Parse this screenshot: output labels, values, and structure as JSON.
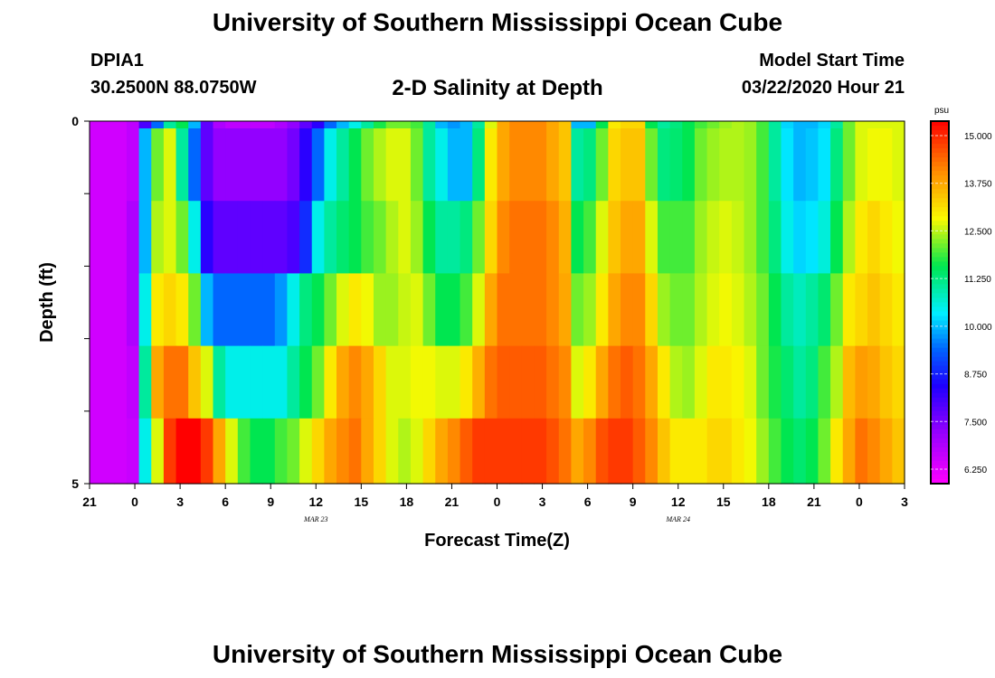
{
  "header": {
    "main_title": "University of Southern Mississippi Ocean Cube",
    "station_id": "DPIA1",
    "station_coords": "30.2500N 88.0750W",
    "plot_title": "2-D Salinity at Depth",
    "model_label": "Model Start Time",
    "model_time": "03/22/2020 Hour 21"
  },
  "footer": {
    "title": "University of Southern Mississippi Ocean Cube"
  },
  "chart_data": {
    "type": "heatmap",
    "title": "2-D Salinity at Depth",
    "xlabel": "Forecast Time(Z)",
    "ylabel": "Depth (ft)",
    "x_tick_labels": [
      "21",
      "0",
      "3",
      "6",
      "9",
      "12",
      "15",
      "18",
      "21",
      "0",
      "3",
      "6",
      "9",
      "12",
      "15",
      "18",
      "21",
      "0",
      "3"
    ],
    "x_range_hours": [
      0,
      54
    ],
    "date_labels": [
      {
        "text": "MAR 23",
        "hour": 15
      },
      {
        "text": "MAR 24",
        "hour": 39
      }
    ],
    "y_tick_labels": [
      "0",
      "5"
    ],
    "y_range": [
      0,
      5
    ],
    "y_minor_ticks": [
      1,
      2,
      3,
      4
    ],
    "time_step_hours": 1,
    "depth_bands": 5,
    "colorbar": {
      "unit": "psu",
      "min": 6.25,
      "max": 15.0,
      "tick_labels": [
        "15.000",
        "13.750",
        "12.500",
        "11.250",
        "10.000",
        "8.750",
        "7.500",
        "6.250"
      ],
      "tick_values": [
        15.0,
        13.75,
        12.5,
        11.25,
        10.0,
        8.75,
        7.5,
        6.25
      ]
    },
    "salinity_psu": [
      [
        6.8,
        6.8,
        6.8,
        7.0,
        8.2,
        9.5,
        11.0,
        11.5,
        10.0,
        8.0,
        7.2,
        7.0,
        7.0,
        7.0,
        7.0,
        7.2,
        7.5,
        8.0,
        8.5,
        9.5,
        10.0,
        10.5,
        11.0,
        11.6,
        12.0,
        12.0,
        11.8,
        11.0,
        10.0,
        9.8,
        10.0,
        11.0,
        12.5,
        13.5,
        13.8,
        13.8,
        13.8,
        13.5,
        13.2,
        10.0,
        10.0,
        11.5,
        12.8,
        13.0,
        13.0,
        11.5,
        11.0,
        11.2,
        11.5,
        11.8,
        12.0,
        12.2,
        12.3,
        12.2,
        11.8,
        11.0,
        10.2,
        10.0,
        10.0,
        10.2,
        11.0,
        12.0,
        12.5,
        12.5,
        12.5,
        12.5
      ],
      [
        6.8,
        6.8,
        6.8,
        7.0,
        10.0,
        12.0,
        12.5,
        11.0,
        9.5,
        8.0,
        7.5,
        7.5,
        7.5,
        7.5,
        7.5,
        7.5,
        7.8,
        8.5,
        9.5,
        10.5,
        11.0,
        11.5,
        12.0,
        12.3,
        12.5,
        12.5,
        12.0,
        11.0,
        10.5,
        10.0,
        10.0,
        11.2,
        12.8,
        13.5,
        13.8,
        13.8,
        13.8,
        13.5,
        13.2,
        11.0,
        11.2,
        12.0,
        13.0,
        13.2,
        13.2,
        12.0,
        11.2,
        11.3,
        11.5,
        12.0,
        12.2,
        12.3,
        12.3,
        12.2,
        11.8,
        11.0,
        10.3,
        10.0,
        10.1,
        10.3,
        11.2,
        12.0,
        12.5,
        12.6,
        12.6,
        12.5
      ],
      [
        6.8,
        6.8,
        6.8,
        7.2,
        10.0,
        12.3,
        12.5,
        12.0,
        10.5,
        8.5,
        8.0,
        8.0,
        8.0,
        8.0,
        8.0,
        8.0,
        8.2,
        9.0,
        10.5,
        11.0,
        11.3,
        11.5,
        11.8,
        12.0,
        12.3,
        12.5,
        12.2,
        11.5,
        11.0,
        11.0,
        11.2,
        12.0,
        13.0,
        13.8,
        14.0,
        14.0,
        14.0,
        13.8,
        13.4,
        11.5,
        11.8,
        12.5,
        13.2,
        13.5,
        13.5,
        12.5,
        11.8,
        11.8,
        11.8,
        12.2,
        12.4,
        12.5,
        12.4,
        12.2,
        11.8,
        11.2,
        10.5,
        10.2,
        10.3,
        10.6,
        11.5,
        12.3,
        12.8,
        13.0,
        12.8,
        12.6
      ],
      [
        6.8,
        6.8,
        6.8,
        7.2,
        10.5,
        12.8,
        13.0,
        12.8,
        12.0,
        10.0,
        9.5,
        9.5,
        9.5,
        9.5,
        9.5,
        9.8,
        10.5,
        11.2,
        11.5,
        12.0,
        12.5,
        12.8,
        12.6,
        12.2,
        12.2,
        12.4,
        12.5,
        12.0,
        11.5,
        11.5,
        11.8,
        12.5,
        13.5,
        14.0,
        14.0,
        14.0,
        14.0,
        13.8,
        13.5,
        12.0,
        12.2,
        12.8,
        13.5,
        13.8,
        13.8,
        13.0,
        12.2,
        12.0,
        12.0,
        12.3,
        12.5,
        12.6,
        12.5,
        12.3,
        12.0,
        11.5,
        11.0,
        10.8,
        11.0,
        11.3,
        12.0,
        12.8,
        13.0,
        13.2,
        13.0,
        12.8
      ],
      [
        6.8,
        6.8,
        6.8,
        7.0,
        11.0,
        13.5,
        14.0,
        14.0,
        13.2,
        12.5,
        11.0,
        10.5,
        10.5,
        10.5,
        10.5,
        10.5,
        11.0,
        11.5,
        12.0,
        12.8,
        13.5,
        13.8,
        13.5,
        13.0,
        12.5,
        12.5,
        12.6,
        12.6,
        12.5,
        12.5,
        12.8,
        13.4,
        14.0,
        14.2,
        14.2,
        14.2,
        14.2,
        14.0,
        13.8,
        12.5,
        12.8,
        13.5,
        14.0,
        14.2,
        14.0,
        13.5,
        12.8,
        12.3,
        12.2,
        12.5,
        12.8,
        12.8,
        12.7,
        12.5,
        12.0,
        11.6,
        11.3,
        11.0,
        11.2,
        11.8,
        12.3,
        13.3,
        13.6,
        13.5,
        13.2,
        13.0
      ],
      [
        6.8,
        6.8,
        6.8,
        6.9,
        10.5,
        12.5,
        14.5,
        15.0,
        15.0,
        14.5,
        13.5,
        12.5,
        11.8,
        11.5,
        11.5,
        11.8,
        12.0,
        12.5,
        13.0,
        13.5,
        13.8,
        14.0,
        13.5,
        13.0,
        12.5,
        12.3,
        12.5,
        13.0,
        13.5,
        13.8,
        14.2,
        14.5,
        14.5,
        14.5,
        14.5,
        14.5,
        14.5,
        14.3,
        14.0,
        13.5,
        13.8,
        14.3,
        14.5,
        14.5,
        14.2,
        13.8,
        13.2,
        12.8,
        12.8,
        12.8,
        13.0,
        13.0,
        12.8,
        12.6,
        12.2,
        11.8,
        11.5,
        11.3,
        11.5,
        12.0,
        12.8,
        13.5,
        14.0,
        13.8,
        13.5,
        13.2
      ]
    ]
  }
}
